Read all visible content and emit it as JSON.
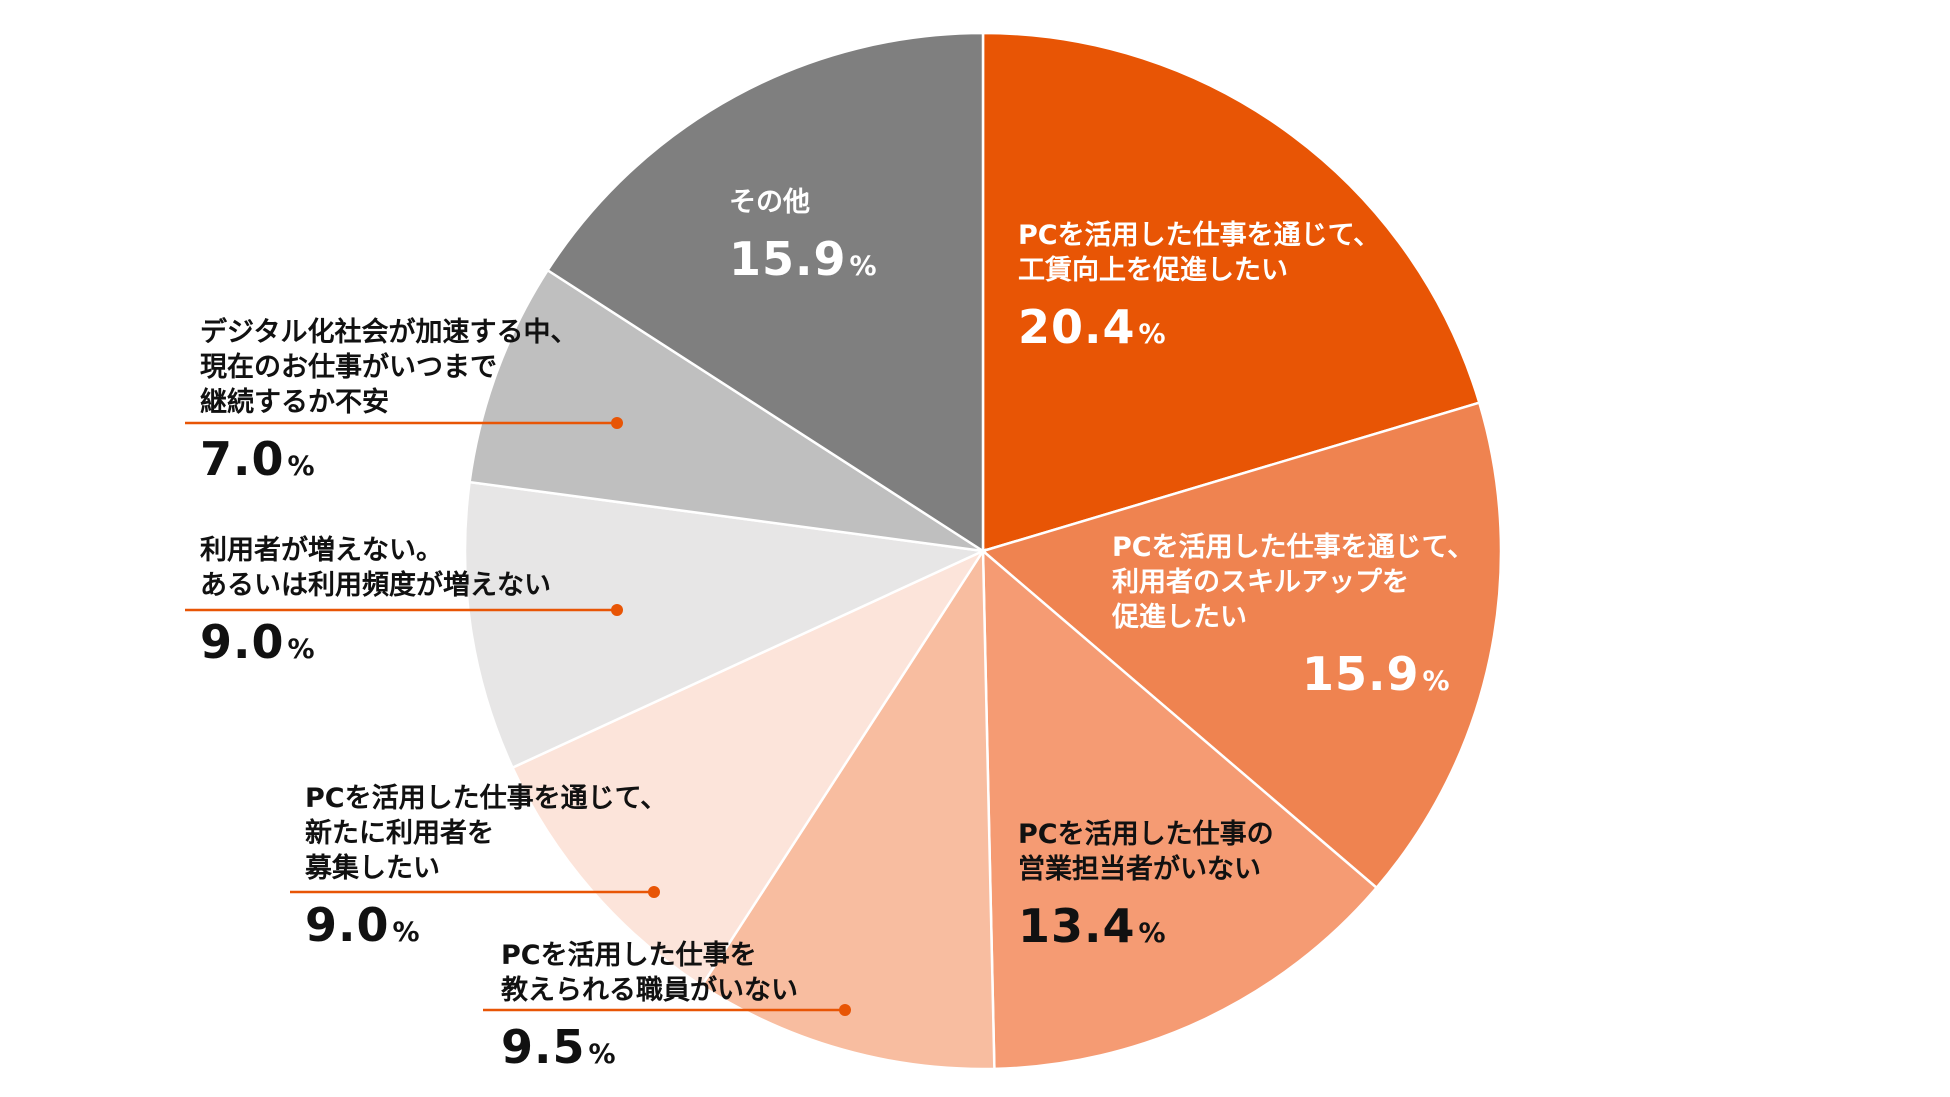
{
  "chart_data": {
    "type": "pie",
    "title": "",
    "unit": "%",
    "start_angle_deg": 0,
    "direction": "clockwise",
    "slices": [
      {
        "label_lines": [
          "PCを活用した仕事を通じて、",
          "工賃向上を促進したい"
        ],
        "value": 20.4,
        "value_text": "20.4",
        "color": "#E85505"
      },
      {
        "label_lines": [
          "PCを活用した仕事を通じて、",
          "利用者のスキルアップを",
          "促進したい"
        ],
        "value": 15.9,
        "value_text": "15.9",
        "color": "#EF8350"
      },
      {
        "label_lines": [
          "PCを活用した仕事の",
          "営業担当者がいない"
        ],
        "value": 13.4,
        "value_text": "13.4",
        "color": "#F59B73"
      },
      {
        "label_lines": [
          "PCを活用した仕事を",
          "教えられる職員がいない"
        ],
        "value": 9.5,
        "value_text": "9.5",
        "color": "#F8BDA0"
      },
      {
        "label_lines": [
          "PCを活用した仕事を通じて、",
          "新たに利用者を",
          "募集したい"
        ],
        "value": 9.0,
        "value_text": "9.0",
        "color": "#FCE4DA"
      },
      {
        "label_lines": [
          "利用者が増えない。",
          "あるいは利用頻度が増えない"
        ],
        "value": 9.0,
        "value_text": "9.0",
        "color": "#E7E6E6"
      },
      {
        "label_lines": [
          "デジタル化社会が加速する中、",
          "現在のお仕事がいつまで",
          "継続するか不安"
        ],
        "value": 7.0,
        "value_text": "7.0",
        "color": "#BFBFBF"
      },
      {
        "label_lines": [
          "その他"
        ],
        "value": 15.9,
        "value_text": "15.9",
        "color": "#7F7F7F"
      }
    ],
    "leader_color": "#E85505"
  }
}
